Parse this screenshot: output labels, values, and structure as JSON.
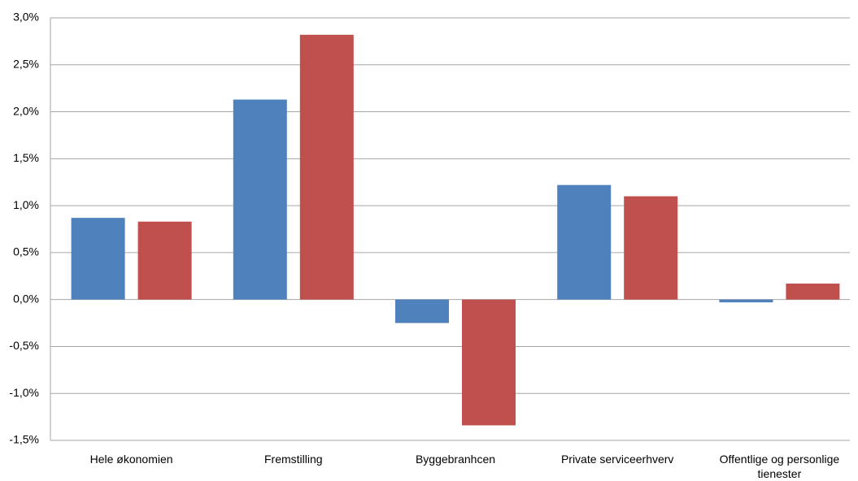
{
  "chart_data": {
    "type": "bar",
    "categories": [
      "Hele økonomien",
      "Fremstilling",
      "Byggebranhcen",
      "Private serviceerhverv",
      "Offentlige og personlige tienester"
    ],
    "series": [
      {
        "color": "#4f81bd",
        "values": [
          0.87,
          2.13,
          -0.25,
          1.22,
          -0.03
        ]
      },
      {
        "color": "#c0504d",
        "values": [
          0.83,
          2.82,
          -1.34,
          1.1,
          0.17
        ]
      }
    ],
    "ylim": [
      -1.5,
      3.0
    ],
    "yticks": [
      {
        "value": -1.5,
        "label": "-1,5%"
      },
      {
        "value": -1.0,
        "label": "-1,0%"
      },
      {
        "value": -0.5,
        "label": "-0,5%"
      },
      {
        "value": 0.0,
        "label": "0,0%"
      },
      {
        "value": 0.5,
        "label": "0,5%"
      },
      {
        "value": 1.0,
        "label": "1,0%"
      },
      {
        "value": 1.5,
        "label": "1,5%"
      },
      {
        "value": 2.0,
        "label": "2,0%"
      },
      {
        "value": 2.5,
        "label": "2,5%"
      },
      {
        "value": 3.0,
        "label": "3,0%"
      }
    ],
    "grid": true
  }
}
